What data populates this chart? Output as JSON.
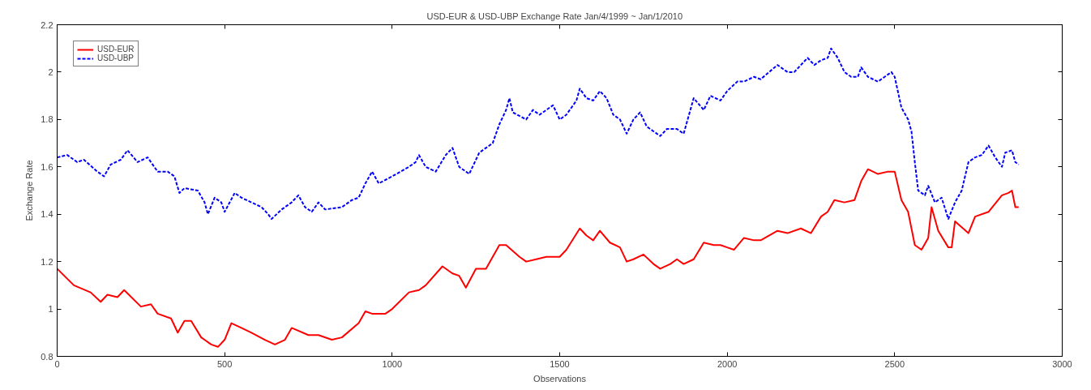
{
  "chart_data": {
    "type": "line",
    "title": "USD-EUR & USD-UBP   Exchange Rate   Jan/4/1999 ~ Jan/1/2010",
    "xlabel": "Observations",
    "ylabel": "Exchange Rate",
    "xlim": [
      0,
      3000
    ],
    "ylim": [
      0.8,
      2.2
    ],
    "xticks": [
      0,
      500,
      1000,
      1500,
      2000,
      2500,
      3000
    ],
    "yticks": [
      0.8,
      1,
      1.2,
      1.4,
      1.6,
      1.8,
      2,
      2.2
    ],
    "grid": false,
    "legend": "top left",
    "series": [
      {
        "name": "USD-EUR",
        "color": "#ff0000",
        "line_style": "solid",
        "x": [
          0,
          50,
          100,
          130,
          150,
          180,
          200,
          250,
          280,
          300,
          340,
          360,
          380,
          400,
          430,
          460,
          480,
          500,
          520,
          550,
          580,
          620,
          650,
          680,
          700,
          750,
          780,
          820,
          850,
          900,
          920,
          940,
          980,
          1000,
          1050,
          1080,
          1100,
          1150,
          1180,
          1200,
          1220,
          1250,
          1280,
          1320,
          1340,
          1380,
          1400,
          1430,
          1460,
          1500,
          1520,
          1560,
          1580,
          1600,
          1620,
          1650,
          1680,
          1700,
          1720,
          1750,
          1780,
          1800,
          1830,
          1850,
          1870,
          1900,
          1930,
          1960,
          1980,
          2000,
          2020,
          2050,
          2080,
          2100,
          2150,
          2180,
          2220,
          2250,
          2280,
          2300,
          2320,
          2350,
          2380,
          2400,
          2420,
          2450,
          2480,
          2500,
          2520,
          2540,
          2560,
          2580,
          2600,
          2610,
          2630,
          2660,
          2670,
          2680,
          2720,
          2740,
          2780,
          2820,
          2840,
          2850,
          2860,
          2870
        ],
        "values": [
          1.17,
          1.1,
          1.07,
          1.03,
          1.06,
          1.05,
          1.08,
          1.01,
          1.02,
          0.98,
          0.96,
          0.9,
          0.95,
          0.95,
          0.88,
          0.85,
          0.84,
          0.87,
          0.94,
          0.92,
          0.9,
          0.87,
          0.85,
          0.87,
          0.92,
          0.89,
          0.89,
          0.87,
          0.88,
          0.94,
          0.99,
          0.98,
          0.98,
          1.0,
          1.07,
          1.08,
          1.1,
          1.18,
          1.15,
          1.14,
          1.09,
          1.17,
          1.17,
          1.27,
          1.27,
          1.22,
          1.2,
          1.21,
          1.22,
          1.22,
          1.25,
          1.34,
          1.31,
          1.29,
          1.33,
          1.28,
          1.26,
          1.2,
          1.21,
          1.23,
          1.19,
          1.17,
          1.19,
          1.21,
          1.19,
          1.21,
          1.28,
          1.27,
          1.27,
          1.26,
          1.25,
          1.3,
          1.29,
          1.29,
          1.33,
          1.32,
          1.34,
          1.32,
          1.39,
          1.41,
          1.46,
          1.45,
          1.46,
          1.54,
          1.59,
          1.57,
          1.58,
          1.58,
          1.46,
          1.41,
          1.27,
          1.25,
          1.3,
          1.43,
          1.33,
          1.26,
          1.26,
          1.37,
          1.32,
          1.39,
          1.41,
          1.48,
          1.49,
          1.5,
          1.43,
          1.43
        ]
      },
      {
        "name": "USD-UBP",
        "color": "#0000ff",
        "line_style": "dashed",
        "x": [
          0,
          30,
          60,
          80,
          120,
          140,
          160,
          190,
          210,
          240,
          270,
          300,
          330,
          350,
          365,
          380,
          420,
          440,
          450,
          470,
          490,
          500,
          530,
          550,
          580,
          610,
          630,
          640,
          670,
          700,
          720,
          740,
          760,
          780,
          800,
          850,
          880,
          900,
          920,
          940,
          960,
          1000,
          1050,
          1070,
          1080,
          1100,
          1130,
          1160,
          1180,
          1200,
          1230,
          1260,
          1300,
          1320,
          1340,
          1350,
          1360,
          1400,
          1420,
          1440,
          1460,
          1480,
          1500,
          1520,
          1550,
          1560,
          1580,
          1600,
          1620,
          1640,
          1660,
          1680,
          1700,
          1720,
          1740,
          1760,
          1800,
          1820,
          1850,
          1870,
          1900,
          1930,
          1950,
          1980,
          2000,
          2030,
          2050,
          2080,
          2100,
          2150,
          2180,
          2200,
          2240,
          2260,
          2280,
          2300,
          2310,
          2330,
          2350,
          2370,
          2390,
          2400,
          2420,
          2450,
          2470,
          2490,
          2500,
          2520,
          2540,
          2550,
          2560,
          2570,
          2590,
          2600,
          2620,
          2640,
          2660,
          2680,
          2700,
          2720,
          2740,
          2760,
          2780,
          2800,
          2820,
          2830,
          2850,
          2860,
          2870
        ],
        "values": [
          1.64,
          1.65,
          1.62,
          1.63,
          1.58,
          1.56,
          1.61,
          1.63,
          1.67,
          1.62,
          1.64,
          1.58,
          1.58,
          1.56,
          1.49,
          1.51,
          1.5,
          1.45,
          1.4,
          1.47,
          1.45,
          1.41,
          1.49,
          1.47,
          1.45,
          1.43,
          1.4,
          1.38,
          1.42,
          1.45,
          1.48,
          1.43,
          1.41,
          1.45,
          1.42,
          1.43,
          1.46,
          1.47,
          1.53,
          1.58,
          1.53,
          1.56,
          1.6,
          1.62,
          1.65,
          1.6,
          1.58,
          1.65,
          1.68,
          1.6,
          1.57,
          1.66,
          1.7,
          1.78,
          1.84,
          1.89,
          1.83,
          1.8,
          1.84,
          1.82,
          1.84,
          1.86,
          1.8,
          1.82,
          1.88,
          1.93,
          1.89,
          1.88,
          1.92,
          1.89,
          1.82,
          1.8,
          1.74,
          1.8,
          1.83,
          1.77,
          1.73,
          1.76,
          1.76,
          1.74,
          1.89,
          1.84,
          1.9,
          1.88,
          1.92,
          1.96,
          1.96,
          1.98,
          1.97,
          2.03,
          2.0,
          2.0,
          2.06,
          2.03,
          2.05,
          2.06,
          2.1,
          2.06,
          2.0,
          1.98,
          1.98,
          2.02,
          1.98,
          1.96,
          1.98,
          2.0,
          1.98,
          1.85,
          1.8,
          1.75,
          1.62,
          1.5,
          1.48,
          1.52,
          1.45,
          1.47,
          1.38,
          1.45,
          1.5,
          1.62,
          1.64,
          1.65,
          1.69,
          1.64,
          1.6,
          1.66,
          1.67,
          1.62,
          1.61
        ]
      }
    ]
  }
}
